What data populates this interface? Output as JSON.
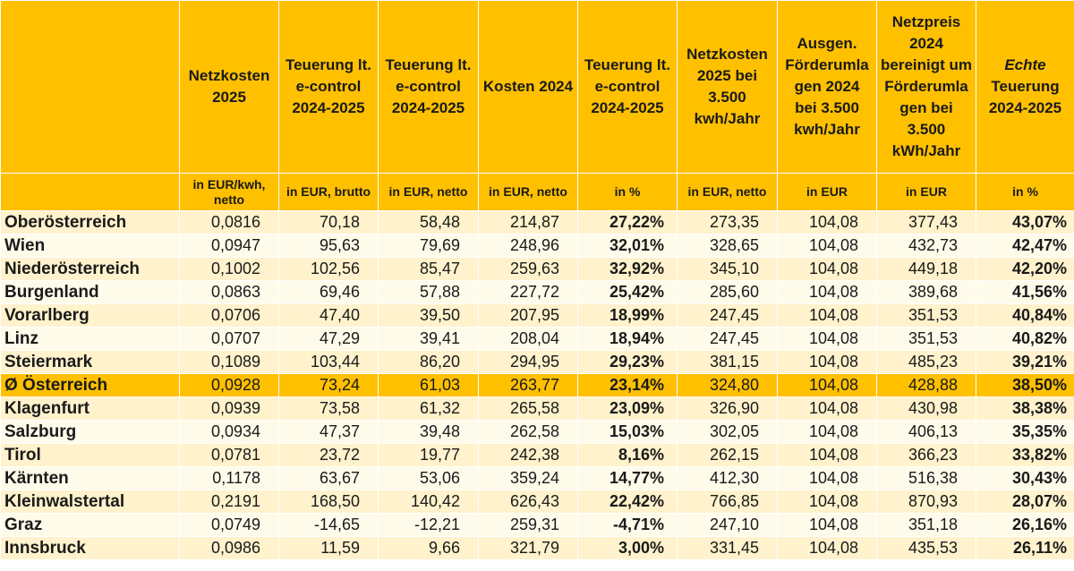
{
  "headers": [
    "",
    "Netzkosten 2025",
    "Teuerung lt. e-control 2024-2025",
    "Teuerung lt. e-control 2024-2025",
    "Kosten 2024",
    "Teuerung lt. e-control 2024-2025",
    "Netzkosten 2025 bei 3.500 kwh/Jahr",
    "Ausgen. Förderumlagen 2024 bei 3.500 kwh/Jahr",
    "Netzpreis 2024 bereinigt um Förderumlagen bei 3.500 kWh/Jahr",
    "Teuerung 2024-2025"
  ],
  "last_header_italic": "Echte",
  "units": [
    "",
    "in EUR/kwh, netto",
    "in EUR, brutto",
    "in EUR, netto",
    "in EUR, netto",
    "in %",
    "in EUR, netto",
    "in EUR",
    "in EUR",
    "in %"
  ],
  "rows": [
    {
      "name": "Oberösterreich",
      "values": [
        "0,0816",
        "70,18",
        "58,48",
        "214,87",
        "27,22%",
        "273,35",
        "104,08",
        "377,43",
        "43,07%"
      ]
    },
    {
      "name": "Wien",
      "values": [
        "0,0947",
        "95,63",
        "79,69",
        "248,96",
        "32,01%",
        "328,65",
        "104,08",
        "432,73",
        "42,47%"
      ]
    },
    {
      "name": "Niederösterreich",
      "values": [
        "0,1002",
        "102,56",
        "85,47",
        "259,63",
        "32,92%",
        "345,10",
        "104,08",
        "449,18",
        "42,20%"
      ]
    },
    {
      "name": "Burgenland",
      "values": [
        "0,0863",
        "69,46",
        "57,88",
        "227,72",
        "25,42%",
        "285,60",
        "104,08",
        "389,68",
        "41,56%"
      ]
    },
    {
      "name": "Vorarlberg",
      "values": [
        "0,0706",
        "47,40",
        "39,50",
        "207,95",
        "18,99%",
        "247,45",
        "104,08",
        "351,53",
        "40,84%"
      ]
    },
    {
      "name": "Linz",
      "values": [
        "0,0707",
        "47,29",
        "39,41",
        "208,04",
        "18,94%",
        "247,45",
        "104,08",
        "351,53",
        "40,82%"
      ]
    },
    {
      "name": "Steiermark",
      "values": [
        "0,1089",
        "103,44",
        "86,20",
        "294,95",
        "29,23%",
        "381,15",
        "104,08",
        "485,23",
        "39,21%"
      ]
    },
    {
      "name": "Ø Österreich",
      "values": [
        "0,0928",
        "73,24",
        "61,03",
        "263,77",
        "23,14%",
        "324,80",
        "104,08",
        "428,88",
        "38,50%"
      ],
      "highlight": true
    },
    {
      "name": "Klagenfurt",
      "values": [
        "0,0939",
        "73,58",
        "61,32",
        "265,58",
        "23,09%",
        "326,90",
        "104,08",
        "430,98",
        "38,38%"
      ]
    },
    {
      "name": "Salzburg",
      "values": [
        "0,0934",
        "47,37",
        "39,48",
        "262,58",
        "15,03%",
        "302,05",
        "104,08",
        "406,13",
        "35,35%"
      ]
    },
    {
      "name": "Tirol",
      "values": [
        "0,0781",
        "23,72",
        "19,77",
        "242,38",
        "8,16%",
        "262,15",
        "104,08",
        "366,23",
        "33,82%"
      ]
    },
    {
      "name": "Kärnten",
      "values": [
        "0,1178",
        "63,67",
        "53,06",
        "359,24",
        "14,77%",
        "412,30",
        "104,08",
        "516,38",
        "30,43%"
      ]
    },
    {
      "name": "Kleinwalstertal",
      "values": [
        "0,2191",
        "168,50",
        "140,42",
        "626,43",
        "22,42%",
        "766,85",
        "104,08",
        "870,93",
        "28,07%"
      ]
    },
    {
      "name": "Graz",
      "values": [
        "0,0749",
        "-14,65",
        "-12,21",
        "259,31",
        "-4,71%",
        "247,10",
        "104,08",
        "351,18",
        "26,16%"
      ]
    },
    {
      "name": "Innsbruck",
      "values": [
        "0,0986",
        "11,59",
        "9,66",
        "321,79",
        "3,00%",
        "331,45",
        "104,08",
        "435,53",
        "26,11%"
      ]
    }
  ],
  "colors": {
    "header": "#ffc000",
    "row_odd": "#fff2cc",
    "row_even": "#fffbea",
    "highlight": "#ffc000"
  }
}
